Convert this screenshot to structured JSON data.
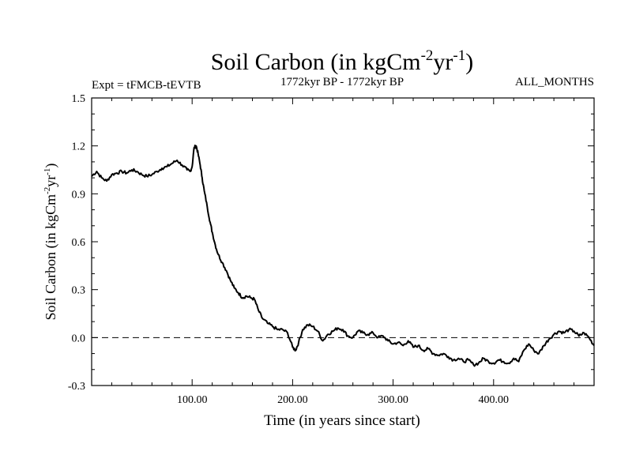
{
  "chart_data": {
    "type": "line",
    "title": "Soil Carbon (in kgCm",
    "title_sup1": "-2",
    "title_mid": "yr",
    "title_sup2": "-1",
    "title_end": ")",
    "subtitle_left": "Expt = tFMCB-tEVTB",
    "subtitle_center": "1772kyr BP - 1772kyr BP",
    "subtitle_right": "ALL_MONTHS",
    "xlabel": "Time (in years since start)",
    "ylabel": "Soil Carbon (in kgCm",
    "ylabel_sup1": "-2",
    "ylabel_mid": "yr",
    "ylabel_sup2": "-1",
    "ylabel_end": ")",
    "xlim": [
      0,
      500
    ],
    "ylim": [
      -0.3,
      1.5
    ],
    "xticks": [
      100,
      200,
      300,
      400
    ],
    "xtick_labels": [
      "100.00",
      "200.00",
      "300.00",
      "400.00"
    ],
    "yticks": [
      -0.3,
      0.0,
      0.3,
      0.6,
      0.9,
      1.2,
      1.5
    ],
    "ytick_labels": [
      "-0.3",
      "0.0",
      "0.3",
      "0.6",
      "0.9",
      "1.2",
      "1.5"
    ],
    "zero_line": 0.0,
    "series": [
      {
        "name": "Soil Carbon",
        "x": [
          0,
          5,
          10,
          15,
          20,
          25,
          30,
          35,
          40,
          45,
          50,
          55,
          60,
          65,
          70,
          75,
          80,
          85,
          90,
          95,
          98,
          100,
          102,
          104,
          106,
          108,
          110,
          112,
          115,
          118,
          120,
          123,
          126,
          130,
          134,
          138,
          142,
          146,
          150,
          154,
          158,
          162,
          166,
          170,
          175,
          180,
          185,
          190,
          195,
          200,
          203,
          206,
          210,
          215,
          220,
          225,
          230,
          235,
          240,
          245,
          250,
          255,
          260,
          265,
          270,
          275,
          280,
          285,
          290,
          295,
          300,
          305,
          310,
          315,
          320,
          325,
          330,
          335,
          340,
          345,
          350,
          355,
          360,
          365,
          370,
          375,
          380,
          385,
          390,
          395,
          400,
          405,
          410,
          415,
          420,
          425,
          430,
          435,
          440,
          445,
          450,
          455,
          460,
          465,
          470,
          475,
          480,
          485,
          490,
          495,
          500
        ],
        "y": [
          1.01,
          1.04,
          1.0,
          0.98,
          1.02,
          1.03,
          1.04,
          1.03,
          1.05,
          1.04,
          1.02,
          1.01,
          1.02,
          1.04,
          1.06,
          1.07,
          1.09,
          1.11,
          1.08,
          1.05,
          1.04,
          1.07,
          1.19,
          1.2,
          1.15,
          1.08,
          1.0,
          0.92,
          0.82,
          0.72,
          0.66,
          0.58,
          0.52,
          0.47,
          0.42,
          0.36,
          0.31,
          0.28,
          0.25,
          0.26,
          0.25,
          0.24,
          0.17,
          0.12,
          0.09,
          0.07,
          0.05,
          0.05,
          0.03,
          -0.06,
          -0.08,
          -0.03,
          0.05,
          0.08,
          0.07,
          0.04,
          -0.02,
          0.02,
          0.04,
          0.06,
          0.05,
          0.01,
          0.0,
          0.04,
          0.03,
          0.02,
          0.03,
          0.0,
          0.01,
          -0.02,
          -0.04,
          -0.03,
          -0.05,
          -0.02,
          -0.06,
          -0.05,
          -0.08,
          -0.07,
          -0.1,
          -0.11,
          -0.1,
          -0.12,
          -0.14,
          -0.13,
          -0.15,
          -0.14,
          -0.17,
          -0.16,
          -0.13,
          -0.15,
          -0.16,
          -0.14,
          -0.15,
          -0.16,
          -0.13,
          -0.15,
          -0.08,
          -0.04,
          -0.08,
          -0.1,
          -0.05,
          -0.01,
          0.02,
          0.04,
          0.03,
          0.05,
          0.04,
          0.01,
          0.03,
          0.0,
          -0.05
        ]
      }
    ]
  }
}
